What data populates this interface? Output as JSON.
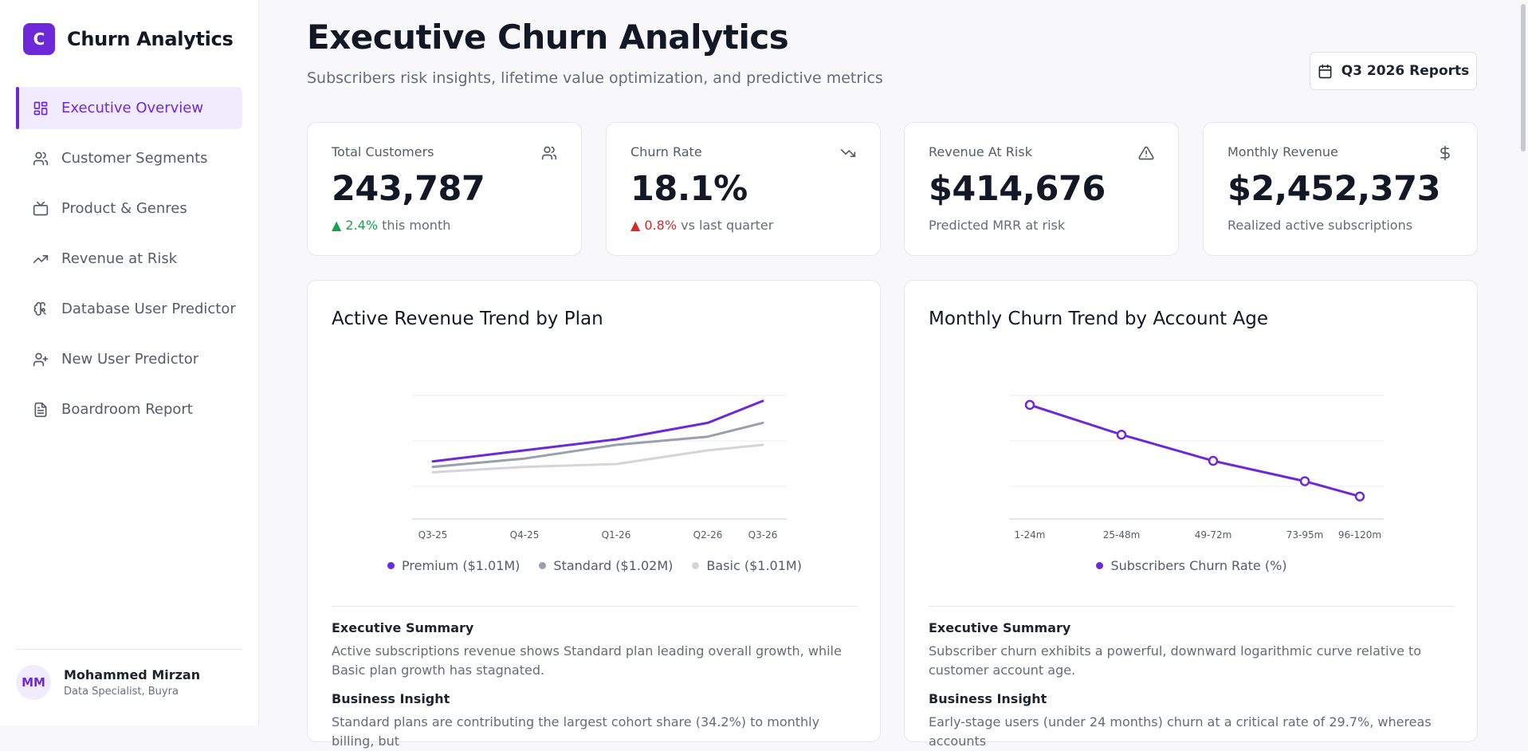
{
  "app": {
    "logo_letter": "C",
    "name": "Churn Analytics"
  },
  "sidebar": {
    "items": [
      {
        "label": "Executive Overview",
        "icon": "dashboard-icon",
        "active": true
      },
      {
        "label": "Customer Segments",
        "icon": "users-icon",
        "active": false
      },
      {
        "label": "Product & Genres",
        "icon": "tv-icon",
        "active": false
      },
      {
        "label": "Revenue at Risk",
        "icon": "trending-up-icon",
        "active": false
      },
      {
        "label": "Database User Predictor",
        "icon": "brain-icon",
        "active": false
      },
      {
        "label": "New User Predictor",
        "icon": "user-plus-icon",
        "active": false
      },
      {
        "label": "Boardroom Report",
        "icon": "file-text-icon",
        "active": false
      }
    ],
    "user": {
      "initials": "MM",
      "name": "Mohammed Mirzan",
      "role": "Data Specialist, Buyra"
    }
  },
  "header": {
    "title": "Executive Churn Analytics",
    "subtitle": "Subscribers risk insights, lifetime value optimization, and predictive metrics",
    "report_button": "Q3 2026 Reports"
  },
  "stats": [
    {
      "label": "Total Customers",
      "icon": "users-icon",
      "value": "243,787",
      "delta": "▲ 2.4%",
      "delta_dir": "up",
      "foot": "this month"
    },
    {
      "label": "Churn Rate",
      "icon": "trending-down-icon",
      "value": "18.1%",
      "delta": "▲ 0.8%",
      "delta_dir": "down",
      "foot": "vs last quarter"
    },
    {
      "label": "Revenue At Risk",
      "icon": "alert-triangle-icon",
      "value": "$414,676",
      "delta": "",
      "delta_dir": "",
      "foot": "Predicted MRR at risk"
    },
    {
      "label": "Monthly Revenue",
      "icon": "dollar-icon",
      "value": "$2,452,373",
      "delta": "",
      "delta_dir": "",
      "foot": "Realized active subscriptions"
    }
  ],
  "colors": {
    "accent": "#6d28d9",
    "premium": "#6d28d9",
    "standard": "#9aa0ab",
    "basic": "#d6d3dc",
    "up": "#16a34a",
    "down": "#dc2626"
  },
  "charts": [
    {
      "title": "Active Revenue Trend by Plan",
      "summary_heading": "Executive Summary",
      "summary": "Active subscriptions revenue shows Standard plan leading overall growth, while Basic plan growth has stagnated.",
      "insight_heading": "Business Insight",
      "insight": "Standard plans are contributing the largest cohort share (34.2%) to monthly billing, but"
    },
    {
      "title": "Monthly Churn Trend by Account Age",
      "summary_heading": "Executive Summary",
      "summary": "Subscriber churn exhibits a powerful, downward logarithmic curve relative to customer account age.",
      "insight_heading": "Business Insight",
      "insight": "Early-stage users (under 24 months) churn at a critical rate of 29.7%, whereas accounts"
    }
  ],
  "chart_data": [
    {
      "type": "line",
      "categories": [
        "Q3-25",
        "Q4-25",
        "Q1-26",
        "Q2-26",
        "Q3-26"
      ],
      "x_positions": [
        0,
        1,
        2,
        3,
        3.6
      ],
      "series": [
        {
          "name": "Premium ($1.01M)",
          "color": "#6d28d9",
          "values": [
            0.21,
            0.25,
            0.29,
            0.35,
            0.43
          ]
        },
        {
          "name": "Standard ($1.02M)",
          "color": "#9aa0ab",
          "values": [
            0.19,
            0.22,
            0.27,
            0.3,
            0.35
          ]
        },
        {
          "name": "Basic ($1.01M)",
          "color": "#d6d3dc",
          "values": [
            0.17,
            0.19,
            0.2,
            0.25,
            0.27
          ]
        }
      ],
      "ylim": [
        0,
        0.45
      ],
      "grid": true,
      "markers": false,
      "legend": "bottom-center"
    },
    {
      "type": "line",
      "categories": [
        "1-24m",
        "25-48m",
        "49-72m",
        "73-95m",
        "96-120m"
      ],
      "x_positions": [
        0,
        1,
        2,
        3,
        3.6
      ],
      "series": [
        {
          "name": "Subscribers Churn Rate (%)",
          "color": "#6d28d9",
          "values": [
            29.7,
            25.6,
            22.0,
            19.2,
            17.1
          ]
        }
      ],
      "ylim": [
        14,
        31
      ],
      "grid": true,
      "markers": true,
      "legend": "bottom-center"
    }
  ]
}
